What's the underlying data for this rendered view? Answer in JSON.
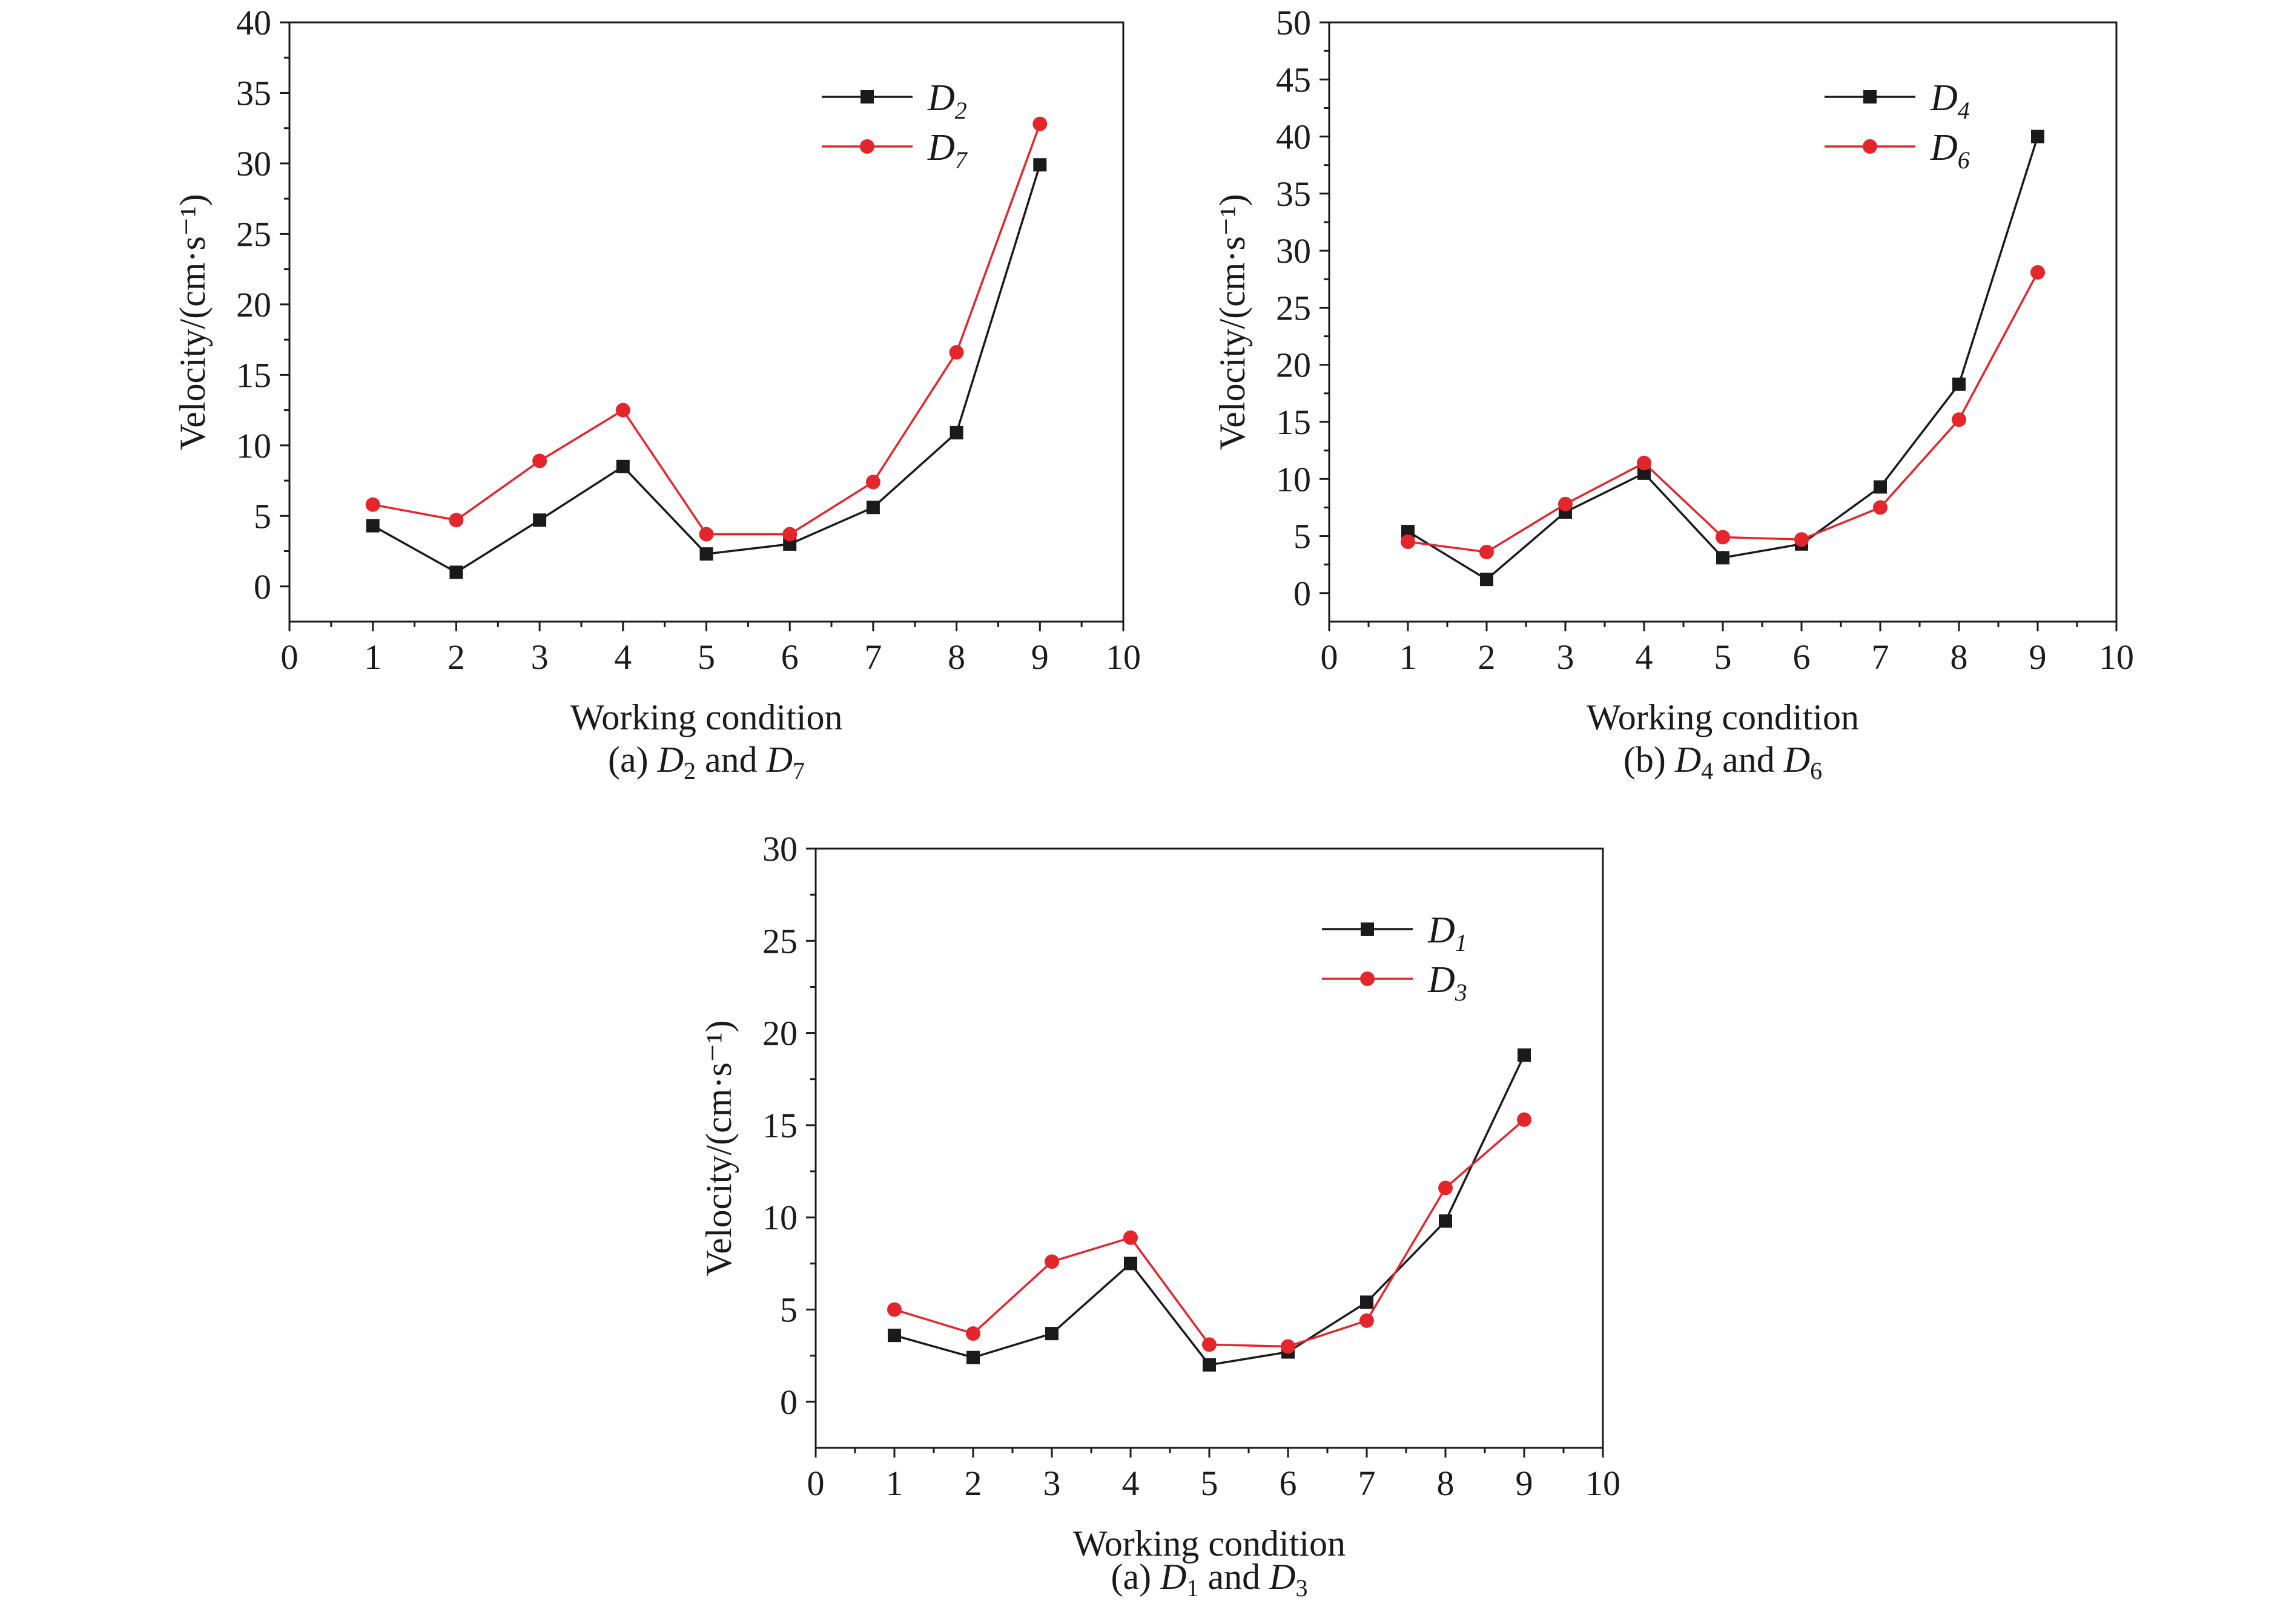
{
  "chart_data": [
    {
      "type": "line",
      "xlabel": "Working condition",
      "ylabel": "Velocity/(cm·s⁻¹)",
      "xlim": [
        0,
        10
      ],
      "ylim": [
        -2.5,
        40
      ],
      "xticks": [
        "0",
        "1",
        "2",
        "3",
        "4",
        "5",
        "6",
        "7",
        "8",
        "9",
        "10"
      ],
      "yticks": [
        "0",
        "5",
        "10",
        "15",
        "20",
        "25",
        "30",
        "35",
        "40"
      ],
      "grid": false,
      "legend_position": "top-right",
      "caption": {
        "prefix": "(a) ",
        "a": "D",
        "a_sub": "2",
        "mid": " and ",
        "b": "D",
        "b_sub": "7"
      },
      "x": [
        1,
        2,
        3,
        4,
        5,
        6,
        7,
        8,
        9
      ],
      "series": [
        {
          "name": "D",
          "sub": "2",
          "color": "#1a1a1a",
          "marker": "square",
          "values": [
            4.3,
            1.0,
            4.7,
            8.5,
            2.3,
            3.0,
            5.6,
            10.9,
            29.9
          ]
        },
        {
          "name": "D",
          "sub": "7",
          "color": "#e3262b",
          "marker": "circle",
          "values": [
            5.8,
            4.7,
            8.9,
            12.5,
            3.7,
            3.7,
            7.4,
            16.6,
            32.8
          ]
        }
      ]
    },
    {
      "type": "line",
      "xlabel": "Working condition",
      "ylabel": "Velocity/(cm·s⁻¹)",
      "xlim": [
        0,
        10
      ],
      "ylim": [
        -2.5,
        50
      ],
      "xticks": [
        "0",
        "1",
        "2",
        "3",
        "4",
        "5",
        "6",
        "7",
        "8",
        "9",
        "10"
      ],
      "yticks": [
        "0",
        "5",
        "10",
        "15",
        "20",
        "25",
        "30",
        "35",
        "40",
        "45",
        "50"
      ],
      "grid": false,
      "legend_position": "top-right",
      "caption": {
        "prefix": "(b) ",
        "a": "D",
        "a_sub": "4",
        "mid": " and ",
        "b": "D",
        "b_sub": "6"
      },
      "x": [
        1,
        2,
        3,
        4,
        5,
        6,
        7,
        8,
        9
      ],
      "series": [
        {
          "name": "D",
          "sub": "4",
          "color": "#1a1a1a",
          "marker": "square",
          "values": [
            5.4,
            1.2,
            7.1,
            10.5,
            3.1,
            4.3,
            9.3,
            18.3,
            40.0
          ]
        },
        {
          "name": "D",
          "sub": "6",
          "color": "#e3262b",
          "marker": "circle",
          "values": [
            4.5,
            3.6,
            7.8,
            11.4,
            4.9,
            4.7,
            7.5,
            15.2,
            28.1
          ]
        }
      ]
    },
    {
      "type": "line",
      "xlabel": "Working condition",
      "ylabel": "Velocity/(cm·s⁻¹)",
      "xlim": [
        0,
        10
      ],
      "ylim": [
        -2.5,
        30
      ],
      "xticks": [
        "0",
        "1",
        "2",
        "3",
        "4",
        "5",
        "6",
        "7",
        "8",
        "9",
        "10"
      ],
      "yticks": [
        "0",
        "5",
        "10",
        "15",
        "20",
        "25",
        "30"
      ],
      "grid": false,
      "legend_position": "top-right",
      "caption": {
        "prefix": "(a) ",
        "a": "D",
        "a_sub": "1",
        "mid": " and ",
        "b": "D",
        "b_sub": "3"
      },
      "x": [
        1,
        2,
        3,
        4,
        5,
        6,
        7,
        8,
        9
      ],
      "series": [
        {
          "name": "D",
          "sub": "1",
          "color": "#1a1a1a",
          "marker": "square",
          "values": [
            3.6,
            2.4,
            3.7,
            7.5,
            2.0,
            2.7,
            5.4,
            9.8,
            18.8
          ]
        },
        {
          "name": "D",
          "sub": "3",
          "color": "#e3262b",
          "marker": "circle",
          "values": [
            5.0,
            3.7,
            7.6,
            8.9,
            3.1,
            3.0,
            4.4,
            11.6,
            15.3
          ]
        }
      ]
    }
  ]
}
